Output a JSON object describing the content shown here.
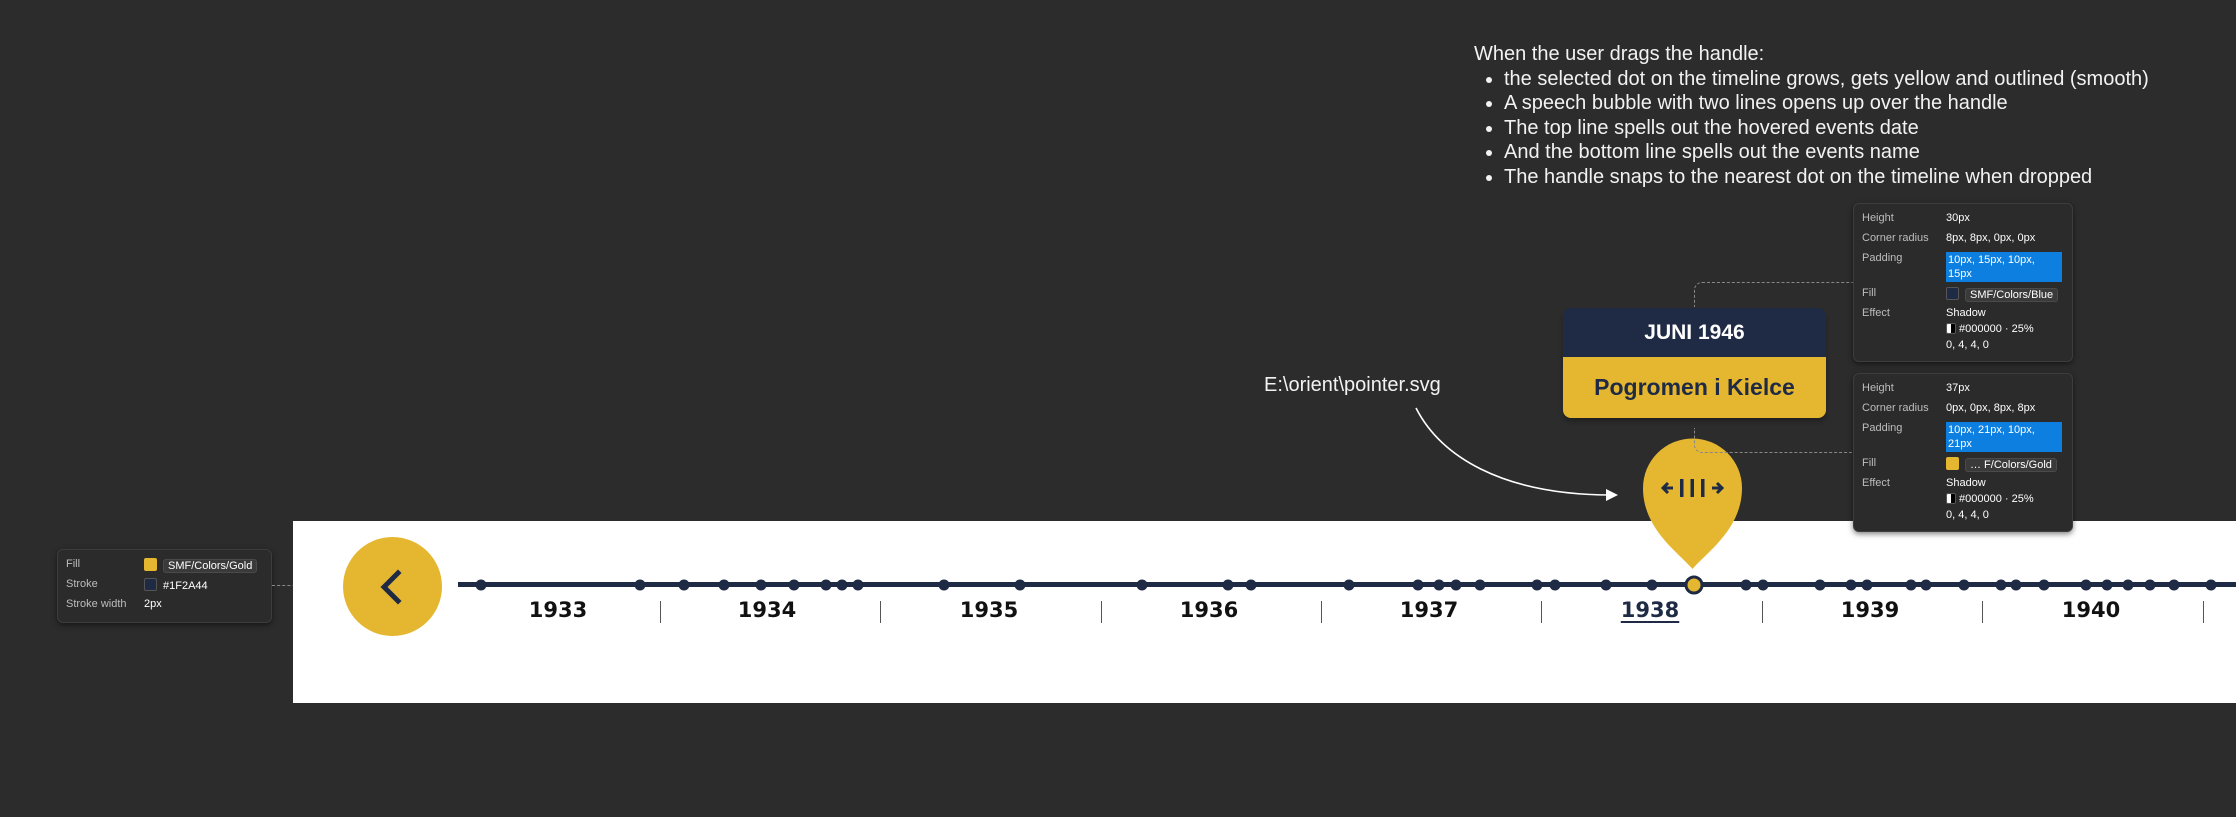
{
  "notes": {
    "intro": "When the user drags the handle:",
    "items": [
      "the selected dot on the timeline grows, gets yellow and outlined (smooth)",
      "A speech bubble with two lines opens up over the handle",
      "The top line spells out the hovered events date",
      "And the bottom line spells out the events name",
      "The handle snaps to the nearest dot on the timeline when dropped"
    ]
  },
  "pointer_path": "E:\\orient\\pointer.svg",
  "colors": {
    "gold": "#E5B731",
    "blue": "#1F2A44",
    "background": "#2C2C2C"
  },
  "timeline": {
    "years": [
      "1933",
      "1934",
      "1935",
      "1936",
      "1937",
      "1938",
      "1939",
      "1940"
    ],
    "active_year": "1938",
    "back_button_icon": "chevron-left-icon",
    "handle_icon": "drag-handle-arrows-icon"
  },
  "bubble": {
    "date": "JUNI 1946",
    "event": "Pogromen i Kielce"
  },
  "handle_spec": {
    "fill_label": "Fill",
    "fill_value": "SMF/Colors/Gold",
    "stroke_label": "Stroke",
    "stroke_value": "#1F2A44",
    "width_label": "Stroke width",
    "width_value": "2px"
  },
  "spec_top": {
    "height_label": "Height",
    "height_value": "30px",
    "radius_label": "Corner radius",
    "radius_value": "8px, 8px, 0px, 0px",
    "padding_label": "Padding",
    "padding_value": "10px, 15px, 10px, 15px",
    "fill_label": "Fill",
    "fill_value": "SMF/Colors/Blue",
    "effect_label": "Effect",
    "effect_value": "Shadow",
    "shadow_color": "#000000 · 25%",
    "shadow_offset": "0, 4, 4, 0"
  },
  "spec_bottom": {
    "height_label": "Height",
    "height_value": "37px",
    "radius_label": "Corner radius",
    "radius_value": "0px, 0px, 8px, 8px",
    "padding_label": "Padding",
    "padding_value": "10px, 21px, 10px, 21px",
    "fill_label": "Fill",
    "fill_value": "… F/Colors/Gold",
    "effect_label": "Effect",
    "effect_value": "Shadow",
    "shadow_color": "#000000 · 25%",
    "shadow_offset": "0, 4, 4, 0"
  }
}
